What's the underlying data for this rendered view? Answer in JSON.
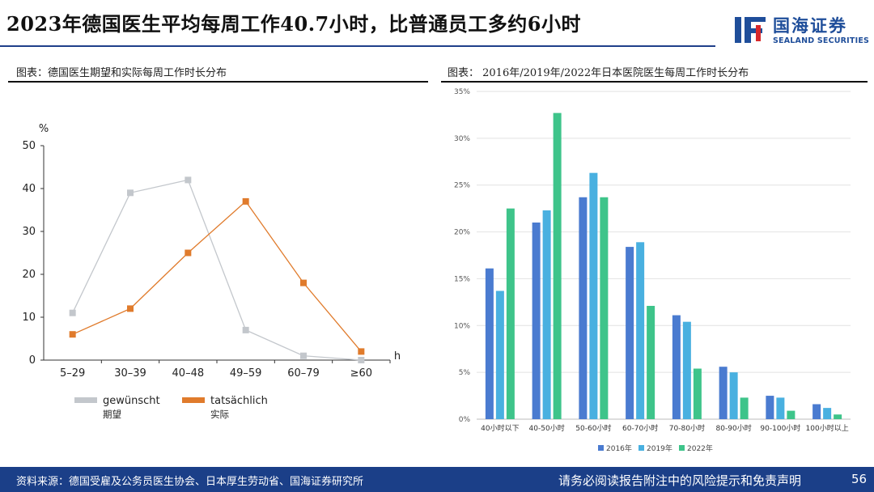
{
  "header": {
    "title": "2023年德国医生平均每周工作40.7小时，比普通员工多约6小时",
    "logo_cn": "国海证券",
    "logo_en": "SEALAND SECURITIES",
    "colors": {
      "brand": "#1f4e9a",
      "logo_red": "#d8282a"
    }
  },
  "panels": {
    "left_title": "图表：德国医生期望和实际每周工作时长分布",
    "right_title": "图表： 2016年/2019年/2022年日本医院医生每周工作时长分布"
  },
  "chart_data": [
    {
      "type": "line",
      "categories": [
        "5–29",
        "30–39",
        "40–48",
        "49–59",
        "60–79",
        "≥60"
      ],
      "series": [
        {
          "name": "gewünscht",
          "subname": "期望",
          "values": [
            11,
            39,
            42,
            7,
            1,
            0
          ],
          "color": "#c3c7cc"
        },
        {
          "name": "tatsächlich",
          "subname": "实际",
          "values": [
            6,
            12,
            25,
            37,
            18,
            2
          ],
          "color": "#e07b2c"
        }
      ],
      "ylim": [
        0,
        50
      ],
      "yticks": [
        0,
        10,
        20,
        30,
        40,
        50
      ],
      "ylabel": "%",
      "xlabel": "h",
      "legend_position": "bottom",
      "grid": false
    },
    {
      "type": "bar",
      "categories": [
        "40小时以下",
        "40-50小时",
        "50-60小时",
        "60-70小时",
        "70-80小时",
        "80-90小时",
        "90-100小时",
        "100小时以上"
      ],
      "series": [
        {
          "name": "2016年",
          "values": [
            16.1,
            21.0,
            23.7,
            18.4,
            11.1,
            5.6,
            2.5,
            1.6
          ],
          "color": "#4a7bd0"
        },
        {
          "name": "2019年",
          "values": [
            13.7,
            22.3,
            26.3,
            18.9,
            10.4,
            5.0,
            2.3,
            1.2
          ],
          "color": "#49b0e0"
        },
        {
          "name": "2022年",
          "values": [
            22.5,
            32.7,
            23.7,
            12.1,
            5.4,
            2.3,
            0.9,
            0.5
          ],
          "color": "#3ec48a"
        }
      ],
      "ylim": [
        0,
        35
      ],
      "yticks": [
        "0%",
        "5%",
        "10%",
        "15%",
        "20%",
        "25%",
        "30%",
        "35%"
      ],
      "legend_position": "bottom",
      "grid": true
    }
  ],
  "footer": {
    "source": "资料来源：德国受雇及公务员医生协会、日本厚生劳动省、国海证券研究所",
    "disclaimer": "请务必阅读报告附注中的风险提示和免责声明",
    "page": "56"
  }
}
